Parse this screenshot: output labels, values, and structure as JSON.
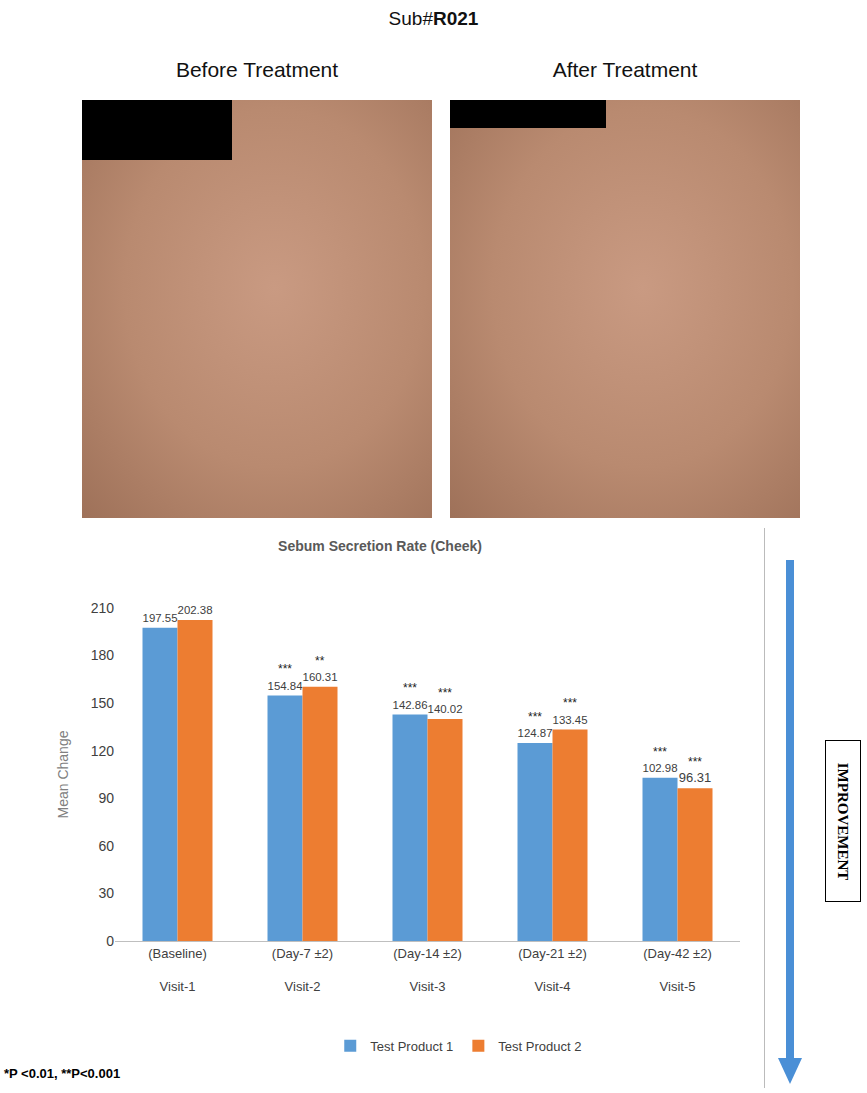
{
  "header": {
    "subject_prefix": "Sub#",
    "subject_id": "R021"
  },
  "photos": {
    "before_label": "Before Treatment",
    "after_label": "After Treatment"
  },
  "side_label": "IMPROVEMENT",
  "footnote": "*P <0.01, **P<0.001",
  "chart_data": {
    "type": "bar",
    "title": "Sebum Secretion Rate (Cheek)",
    "y_label": "Mean Change",
    "categories": [
      "(Baseline)",
      "(Day-7 ±2)",
      "(Day-14 ±2)",
      "(Day-21 ±2)",
      "(Day-42 ±2)"
    ],
    "category_groups": [
      "Visit-1",
      "Visit-2",
      "Visit-3",
      "Visit-4",
      "Visit-5"
    ],
    "series": [
      {
        "name": "Test Product 1",
        "color": "#5b9bd5",
        "values": [
          197.55,
          154.84,
          142.86,
          124.87,
          102.98
        ],
        "significance": [
          null,
          "***",
          "***",
          "***",
          "***"
        ]
      },
      {
        "name": "Test Product 2",
        "color": "#ed7d31",
        "values": [
          202.38,
          160.31,
          140.02,
          133.45,
          96.31
        ],
        "significance": [
          null,
          "**",
          "***",
          "***",
          "***"
        ]
      }
    ],
    "ylim": [
      0,
      210
    ],
    "yticks": [
      0,
      30,
      60,
      90,
      120,
      150,
      180,
      210
    ],
    "grid": false,
    "data_labels": true,
    "legend": "bottom"
  }
}
